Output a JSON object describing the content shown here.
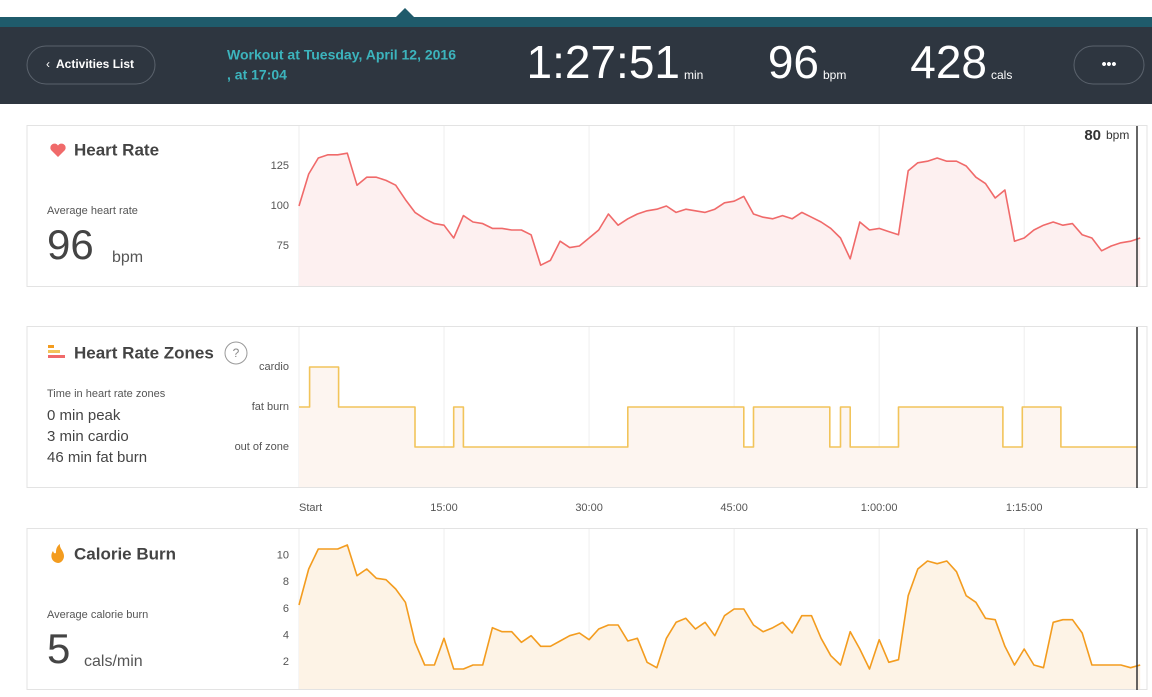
{
  "header": {
    "back_button": "Activities List",
    "workout_line1": "Workout at Tuesday, April 12, 2016",
    "workout_line2": ", at 17:04",
    "duration": "1:27:51",
    "duration_unit": "min",
    "heart_rate": "96",
    "heart_rate_unit": "bpm",
    "calories": "428",
    "calories_unit": "cals",
    "menu_button": "•••"
  },
  "panels": [
    {
      "title": "Heart Rate",
      "label": "Average heart rate",
      "value": "96",
      "unit": "bpm"
    },
    {
      "title": "Heart Rate Zones",
      "help": "?",
      "label": "Time in heart rate zones",
      "lines": [
        "0 min peak",
        "3 min cardio",
        "46 min fat burn"
      ]
    },
    {
      "title": "Calorie Burn",
      "label": "Average calorie burn",
      "value": "5",
      "unit": "cals/min"
    }
  ],
  "chart_data": [
    {
      "type": "line",
      "color": "#f06a6a",
      "fill": "#fdf0f0",
      "annotation": {
        "value": "80",
        "unit": "bpm"
      },
      "xlim": [
        0,
        87.7
      ],
      "xticks": [
        15,
        30,
        45,
        60,
        75
      ],
      "grid": true,
      "ylim": [
        50,
        150
      ],
      "yticks": [
        75,
        100,
        125
      ],
      "x": [
        0,
        1,
        2,
        3,
        4,
        5,
        6,
        7,
        8,
        9,
        10,
        11,
        12,
        13,
        14,
        15,
        16,
        17,
        18,
        19,
        20,
        21,
        22,
        23,
        24,
        25,
        26,
        27,
        28,
        29,
        30,
        31,
        32,
        33,
        34,
        35,
        36,
        37,
        38,
        39,
        40,
        41,
        42,
        43,
        44,
        45,
        46,
        47,
        48,
        49,
        50,
        51,
        52,
        53,
        54,
        55,
        56,
        57,
        58,
        59,
        60,
        61,
        62,
        63,
        64,
        65,
        66,
        67,
        68,
        69,
        70,
        71,
        72,
        73,
        74,
        75,
        76,
        77,
        78,
        79,
        80,
        81,
        82,
        83,
        84,
        85,
        86,
        87
      ],
      "values": [
        100,
        120,
        130,
        132,
        132,
        133,
        113,
        118,
        118,
        116,
        113,
        104,
        96,
        92,
        89,
        88,
        80,
        94,
        90,
        89,
        86,
        86,
        85,
        85,
        82,
        63,
        66,
        78,
        74,
        75,
        80,
        85,
        95,
        88,
        92,
        95,
        97,
        98,
        100,
        96,
        98,
        97,
        96,
        98,
        102,
        103,
        106,
        95,
        93,
        92,
        94,
        92,
        96,
        93,
        90,
        86,
        80,
        67,
        90,
        85,
        86,
        84,
        82,
        122,
        127,
        128,
        130,
        128,
        128,
        125,
        118,
        114,
        105,
        110,
        78,
        80,
        85,
        88,
        90,
        88,
        89,
        82,
        80,
        72,
        75,
        77,
        78,
        80
      ]
    },
    {
      "type": "step",
      "color": "#f2c45a",
      "fill": "#fdf5f0",
      "xlim": [
        0,
        87.7
      ],
      "xticks": [
        {
          "value": 0,
          "label": "Start"
        },
        {
          "value": 15,
          "label": "15:00"
        },
        {
          "value": 30,
          "label": "30:00"
        },
        {
          "value": 45,
          "label": "45:00"
        },
        {
          "value": 60,
          "label": "1:00:00"
        },
        {
          "value": 75,
          "label": "1:15:00"
        }
      ],
      "grid": true,
      "ylim": [
        -1,
        3
      ],
      "yticks": [
        {
          "value": 0,
          "label": "out of zone"
        },
        {
          "value": 1,
          "label": "fat burn"
        },
        {
          "value": 2,
          "label": "cardio"
        }
      ],
      "x": [
        0,
        1.1,
        4.1,
        12,
        16,
        17,
        34,
        46,
        47,
        54.9,
        56,
        57,
        62,
        72.8,
        74.8,
        78.8,
        86.7
      ],
      "values": [
        1,
        2,
        1,
        0,
        1,
        0,
        1,
        0,
        1,
        0,
        1,
        0,
        1,
        0,
        1,
        0,
        0
      ]
    },
    {
      "type": "line",
      "color": "#f39c1f",
      "fill": "#fdf3e6",
      "xlim": [
        0,
        87.7
      ],
      "xticks": [
        15,
        30,
        45,
        60,
        75
      ],
      "grid": true,
      "ylim": [
        0,
        12
      ],
      "yticks": [
        2,
        4,
        6,
        8,
        10
      ],
      "x": [
        0,
        1,
        2,
        3,
        4,
        5,
        6,
        7,
        8,
        9,
        10,
        11,
        12,
        13,
        14,
        15,
        16,
        17,
        18,
        19,
        20,
        21,
        22,
        23,
        24,
        25,
        26,
        27,
        28,
        29,
        30,
        31,
        32,
        33,
        34,
        35,
        36,
        37,
        38,
        39,
        40,
        41,
        42,
        43,
        44,
        45,
        46,
        47,
        48,
        49,
        50,
        51,
        52,
        53,
        54,
        55,
        56,
        57,
        58,
        59,
        60,
        61,
        62,
        63,
        64,
        65,
        66,
        67,
        68,
        69,
        70,
        71,
        72,
        73,
        74,
        75,
        76,
        77,
        78,
        79,
        80,
        81,
        82,
        83,
        84,
        85,
        86,
        87
      ],
      "values": [
        6.3,
        9,
        10.5,
        10.5,
        10.5,
        10.8,
        8.5,
        9,
        8.3,
        8.2,
        7.5,
        6.5,
        3.5,
        1.8,
        1.8,
        3.8,
        1.5,
        1.5,
        1.8,
        1.8,
        4.6,
        4.3,
        4.3,
        3.5,
        4,
        3.2,
        3.2,
        3.6,
        4,
        4.2,
        3.7,
        4.5,
        4.8,
        4.8,
        3.6,
        3.8,
        2,
        1.6,
        3.8,
        5,
        5.3,
        4.5,
        5,
        4,
        5.5,
        6,
        6,
        4.8,
        4.3,
        4.6,
        5,
        4.2,
        5.5,
        5.5,
        3.8,
        2.5,
        1.8,
        4.3,
        3,
        1.5,
        3.7,
        2,
        2.2,
        7,
        9,
        9.6,
        9.4,
        9.6,
        8.8,
        7,
        6.5,
        5.3,
        5.2,
        3.2,
        1.8,
        3,
        1.8,
        1.6,
        5,
        5.2,
        5.2,
        4.2,
        1.8,
        1.8,
        1.8,
        1.8,
        1.6,
        1.8
      ]
    }
  ]
}
